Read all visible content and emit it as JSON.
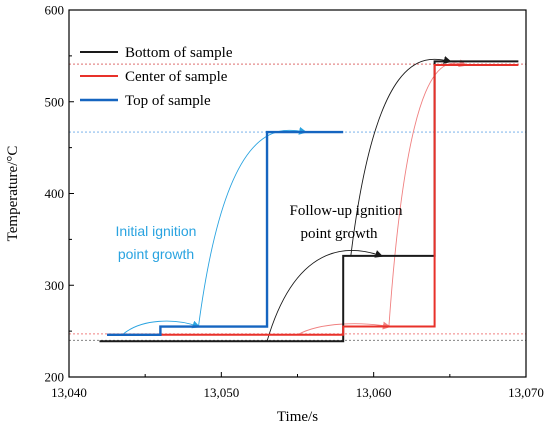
{
  "chart_data": {
    "type": "line",
    "xlabel": "Time/s",
    "ylabel": "Temperature/°C",
    "xlim": [
      13040,
      13070
    ],
    "ylim": [
      200,
      600
    ],
    "x_ticks": [
      13040,
      13050,
      13060,
      13070
    ],
    "x_tick_labels": [
      "13,040",
      "13,050",
      "13,060",
      "13,070"
    ],
    "y_ticks": [
      200,
      300,
      400,
      500,
      600
    ],
    "y_tick_labels": [
      "200",
      "300",
      "400",
      "500",
      "600"
    ],
    "grid": false,
    "legend_position": "top-left",
    "series": [
      {
        "name": "Bottom of sample",
        "color": "#1a1a1a",
        "points": [
          [
            13042,
            239
          ],
          [
            13058,
            239
          ],
          [
            13058,
            332
          ],
          [
            13064,
            332
          ],
          [
            13064,
            544
          ],
          [
            13069.5,
            544
          ]
        ]
      },
      {
        "name": "Center of sample",
        "color": "#e8312a",
        "points": [
          [
            13042.5,
            246
          ],
          [
            13058,
            246
          ],
          [
            13058,
            255
          ],
          [
            13064,
            255
          ],
          [
            13064,
            540
          ],
          [
            13069.5,
            540
          ]
        ]
      },
      {
        "name": "Top of sample",
        "color": "#1565c0",
        "points": [
          [
            13042.5,
            246
          ],
          [
            13046,
            246
          ],
          [
            13046,
            255
          ],
          [
            13053,
            255
          ],
          [
            13053,
            467
          ],
          [
            13058,
            467
          ]
        ]
      }
    ],
    "reference_lines": [
      {
        "y": 541,
        "color": "#a0a0a0"
      },
      {
        "y": 541,
        "color": "#f08080"
      },
      {
        "y": 467,
        "color": "#6aa8e8"
      },
      {
        "y": 247,
        "color": "#f08080"
      },
      {
        "y": 240,
        "color": "#707070"
      }
    ],
    "annotations": [
      {
        "lines": [
          "Initial ignition",
          "point growth"
        ],
        "color": "#29a3e0"
      },
      {
        "lines": [
          "Follow-up ignition",
          "point growth"
        ],
        "color": "#000000"
      }
    ],
    "arrows": [
      {
        "from": [
          13043.5,
          246
        ],
        "to": [
          13048.5,
          255
        ],
        "peak": 264,
        "color": "#29a3e0"
      },
      {
        "from": [
          13048.5,
          255
        ],
        "to": [
          13055.5,
          467
        ],
        "peak": 474,
        "color": "#29a3e0"
      },
      {
        "from": [
          13053,
          239
        ],
        "to": [
          13060.5,
          332
        ],
        "peak": 345,
        "color": "#1a1a1a"
      },
      {
        "from": [
          13058.5,
          332
        ],
        "to": [
          13065,
          544
        ],
        "peak": 552,
        "color": "#1a1a1a"
      },
      {
        "from": [
          13055,
          246
        ],
        "to": [
          13061,
          255
        ],
        "peak": 260,
        "color": "#f08080"
      },
      {
        "from": [
          13061,
          255
        ],
        "to": [
          13066,
          540
        ],
        "peak": 548,
        "color": "#f08080"
      }
    ]
  }
}
